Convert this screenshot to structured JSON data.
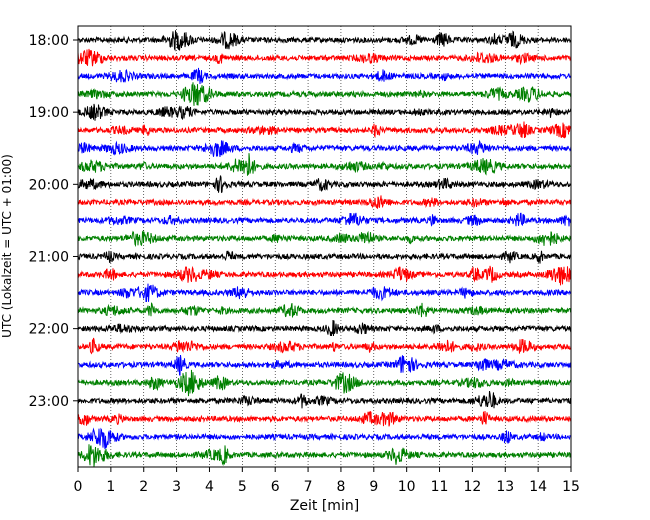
{
  "chart_data": {
    "type": "line",
    "title": "",
    "xlabel": "Zeit  [min]",
    "ylabel": "UTC (Lokalzeit = UTC + 01:00)",
    "xlim": [
      0,
      15
    ],
    "x_ticks": [
      0,
      1,
      2,
      3,
      4,
      5,
      6,
      7,
      8,
      9,
      10,
      11,
      12,
      13,
      14,
      15
    ],
    "x_tick_labels": [
      "0",
      "1",
      "2",
      "3",
      "4",
      "5",
      "6",
      "7",
      "8",
      "9",
      "10",
      "11",
      "12",
      "13",
      "14",
      "15"
    ],
    "y_tick_labels": [
      "18:00",
      "19:00",
      "20:00",
      "21:00",
      "22:00",
      "23:00"
    ],
    "y_tick_trace_index": [
      0,
      4,
      8,
      12,
      16,
      20
    ],
    "grid": {
      "x": true,
      "y": false,
      "style": "dotted"
    },
    "trace_color_cycle": [
      "#000000",
      "#ff0000",
      "#0000ff",
      "#008000"
    ],
    "series": [
      {
        "start_utc": "18:00",
        "color": "#000000"
      },
      {
        "start_utc": "18:15",
        "color": "#ff0000"
      },
      {
        "start_utc": "18:30",
        "color": "#0000ff"
      },
      {
        "start_utc": "18:45",
        "color": "#008000"
      },
      {
        "start_utc": "19:00",
        "color": "#000000"
      },
      {
        "start_utc": "19:15",
        "color": "#ff0000"
      },
      {
        "start_utc": "19:30",
        "color": "#0000ff"
      },
      {
        "start_utc": "19:45",
        "color": "#008000"
      },
      {
        "start_utc": "20:00",
        "color": "#000000"
      },
      {
        "start_utc": "20:15",
        "color": "#ff0000"
      },
      {
        "start_utc": "20:30",
        "color": "#0000ff"
      },
      {
        "start_utc": "20:45",
        "color": "#008000"
      },
      {
        "start_utc": "21:00",
        "color": "#000000"
      },
      {
        "start_utc": "21:15",
        "color": "#ff0000"
      },
      {
        "start_utc": "21:30",
        "color": "#0000ff"
      },
      {
        "start_utc": "21:45",
        "color": "#008000"
      },
      {
        "start_utc": "22:00",
        "color": "#000000"
      },
      {
        "start_utc": "22:15",
        "color": "#ff0000"
      },
      {
        "start_utc": "22:30",
        "color": "#0000ff"
      },
      {
        "start_utc": "22:45",
        "color": "#008000"
      },
      {
        "start_utc": "23:00",
        "color": "#000000"
      },
      {
        "start_utc": "23:15",
        "color": "#ff0000"
      },
      {
        "start_utc": "23:30",
        "color": "#0000ff"
      },
      {
        "start_utc": "23:45",
        "color": "#008000"
      }
    ]
  }
}
